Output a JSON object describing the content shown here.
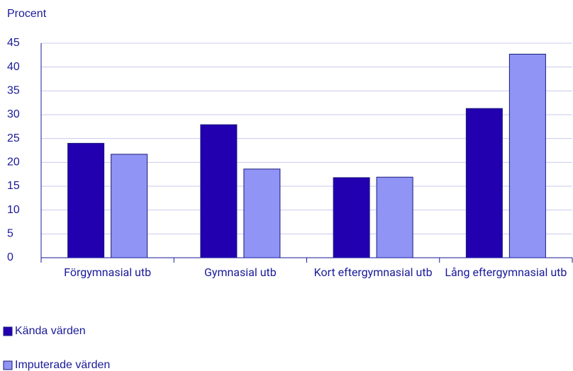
{
  "chart_data": {
    "type": "bar",
    "title": "Procent",
    "categories": [
      "Förgymnasial utb",
      "Gymnasial utb",
      "Kort eftergymnasial utb",
      "Lång eftergymnasial utb"
    ],
    "series": [
      {
        "name": "Kända värden",
        "color": "#2200b0",
        "values": [
          24,
          27.9,
          16.8,
          31.3
        ]
      },
      {
        "name": "Imputerade värden",
        "color": "#8f94f5",
        "values": [
          21.7,
          18.6,
          16.9,
          42.7
        ]
      }
    ],
    "ylim": [
      0,
      45
    ],
    "yticks": [
      0,
      5,
      10,
      15,
      20,
      25,
      30,
      35,
      40,
      45
    ],
    "grid": true,
    "legend": "bottom"
  }
}
